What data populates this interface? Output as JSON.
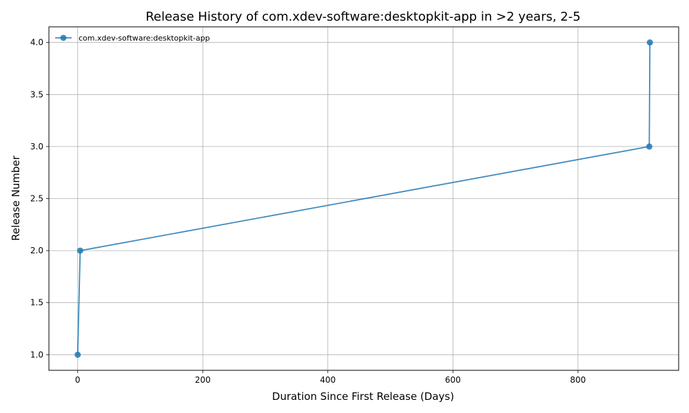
{
  "chart_data": {
    "type": "line",
    "title": "Release History of com.xdev-software:desktopkit-app in >2 years, 2-5",
    "xlabel": "Duration Since First Release (Days)",
    "ylabel": "Release Number",
    "xlim": [
      -46,
      961
    ],
    "ylim": [
      0.85,
      4.15
    ],
    "xticks": [
      0,
      200,
      400,
      600,
      800
    ],
    "yticks": [
      1.0,
      1.5,
      2.0,
      2.5,
      3.0,
      3.5,
      4.0
    ],
    "grid": true,
    "legend_position": "top-left",
    "series": [
      {
        "name": "com.xdev-software:desktopkit-app",
        "color": "#1f77b4",
        "x": [
          0,
          4,
          914,
          915
        ],
        "y": [
          1.0,
          2.0,
          3.0,
          4.0
        ]
      }
    ]
  }
}
